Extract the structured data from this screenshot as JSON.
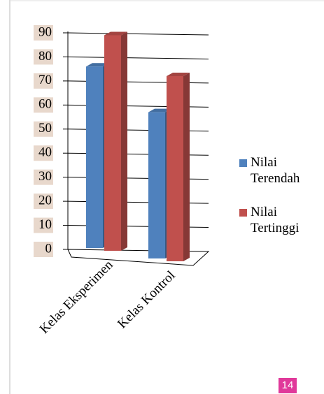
{
  "chart_data": {
    "type": "bar3d",
    "categories": [
      "Kelas Eksperimen",
      "Kelas Kontrol"
    ],
    "series": [
      {
        "name": "Nilai Terendah",
        "color": "#4f81bd",
        "values": [
          76,
          57
        ]
      },
      {
        "name": "Nilai Tertinggi",
        "color": "#c0504d",
        "values": [
          89,
          72
        ]
      }
    ],
    "ylim": [
      0,
      90
    ],
    "yticks": [
      0,
      10,
      20,
      30,
      40,
      50,
      60,
      70,
      80,
      90
    ],
    "grid": true,
    "legend": "right"
  },
  "page_number": "14"
}
